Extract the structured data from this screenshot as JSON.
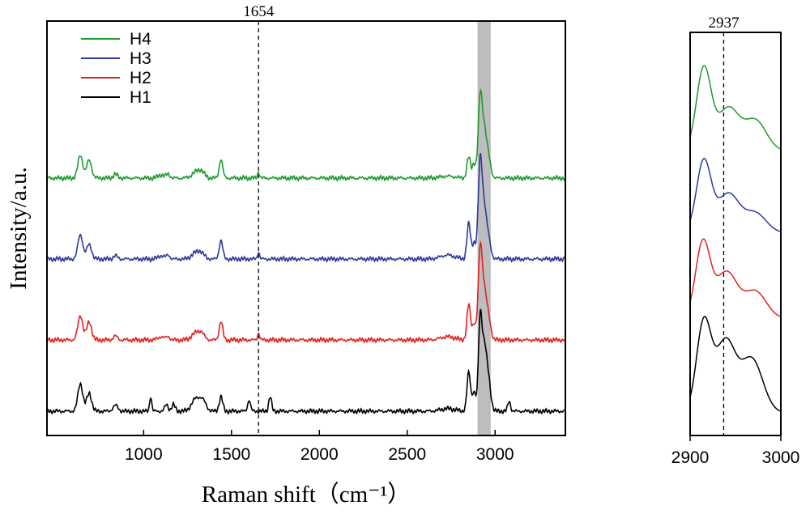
{
  "chart_data": [
    {
      "type": "line",
      "title": "",
      "xlabel": "Raman shift",
      "xlabel_unit": "（cm⁻¹）",
      "ylabel": "Intensity/a.u.",
      "xlim": [
        450,
        3400
      ],
      "ylim": [
        0,
        10
      ],
      "xticks": [
        1000,
        1500,
        2000,
        2500,
        3000
      ],
      "xtick_labels": [
        "1000",
        "1500",
        "2000",
        "2500",
        "3000"
      ],
      "yticks_shown": false,
      "reference_line": {
        "x": 1654,
        "label": "1654"
      },
      "highlight_band": {
        "from": 2900,
        "to": 2975,
        "color": "#bdbdbd"
      },
      "legend": {
        "position": "top-left",
        "entries": [
          "H4",
          "H3",
          "H2",
          "H1"
        ]
      },
      "series": [
        {
          "name": "H4",
          "color": "#1f9a2e",
          "baseline": 7.2,
          "scale": 1.0,
          "peaks": [
            [
              640,
              0.7,
              14
            ],
            [
              690,
              0.55,
              14
            ],
            [
              840,
              0.12,
              12
            ],
            [
              1100,
              0.1,
              18
            ],
            [
              1140,
              0.12,
              10
            ],
            [
              1300,
              0.18,
              25
            ],
            [
              1330,
              0.15,
              18
            ],
            [
              1440,
              0.58,
              10
            ],
            [
              1654,
              0.18,
              6
            ],
            [
              2730,
              0.06,
              40
            ],
            [
              2850,
              0.65,
              10
            ],
            [
              2880,
              0.45,
              10
            ],
            [
              2915,
              2.45,
              11
            ],
            [
              2937,
              1.3,
              12
            ],
            [
              2960,
              0.7,
              14
            ]
          ]
        },
        {
          "name": "H3",
          "color": "#2b3a9c",
          "baseline": 4.7,
          "scale": 1.0,
          "peaks": [
            [
              640,
              0.75,
              14
            ],
            [
              690,
              0.45,
              14
            ],
            [
              840,
              0.1,
              12
            ],
            [
              1100,
              0.1,
              18
            ],
            [
              1140,
              0.12,
              10
            ],
            [
              1300,
              0.2,
              25
            ],
            [
              1330,
              0.12,
              18
            ],
            [
              1440,
              0.58,
              10
            ],
            [
              1654,
              0.22,
              6
            ],
            [
              2730,
              0.12,
              40
            ],
            [
              2850,
              1.1,
              10
            ],
            [
              2880,
              0.5,
              10
            ],
            [
              2915,
              2.95,
              11
            ],
            [
              2937,
              1.35,
              12
            ],
            [
              2960,
              0.7,
              14
            ]
          ]
        },
        {
          "name": "H2",
          "color": "#e0231f",
          "baseline": 2.2,
          "scale": 1.0,
          "peaks": [
            [
              640,
              0.75,
              14
            ],
            [
              690,
              0.55,
              14
            ],
            [
              840,
              0.12,
              12
            ],
            [
              1100,
              0.1,
              18
            ],
            [
              1140,
              0.1,
              10
            ],
            [
              1300,
              0.22,
              25
            ],
            [
              1330,
              0.14,
              18
            ],
            [
              1440,
              0.58,
              10
            ],
            [
              1654,
              0.22,
              6
            ],
            [
              2730,
              0.1,
              40
            ],
            [
              2850,
              1.1,
              10
            ],
            [
              2880,
              0.5,
              10
            ],
            [
              2915,
              2.75,
              11
            ],
            [
              2937,
              1.3,
              12
            ],
            [
              2960,
              0.75,
              14
            ]
          ]
        },
        {
          "name": "H1",
          "color": "#000000",
          "baseline": 0.0,
          "scale": 1.0,
          "peaks": [
            [
              640,
              0.85,
              14
            ],
            [
              690,
              0.55,
              14
            ],
            [
              840,
              0.18,
              14
            ],
            [
              1040,
              0.45,
              6
            ],
            [
              1130,
              0.2,
              10
            ],
            [
              1170,
              0.2,
              10
            ],
            [
              1300,
              0.4,
              25
            ],
            [
              1340,
              0.25,
              18
            ],
            [
              1440,
              0.45,
              10
            ],
            [
              1600,
              0.35,
              8
            ],
            [
              1720,
              0.45,
              8
            ],
            [
              2730,
              0.08,
              40
            ],
            [
              2850,
              1.2,
              10
            ],
            [
              2880,
              0.6,
              10
            ],
            [
              2915,
              2.75,
              10
            ],
            [
              2937,
              1.75,
              12
            ],
            [
              2960,
              1.05,
              14
            ],
            [
              3080,
              0.3,
              8
            ]
          ]
        }
      ]
    },
    {
      "type": "line",
      "title": "",
      "xlabel": "",
      "ylabel": "",
      "xlim": [
        2900,
        3000
      ],
      "ylim": [
        0,
        10
      ],
      "xticks": [
        2900,
        3000
      ],
      "xtick_labels": [
        "2900",
        "3000"
      ],
      "reference_line": {
        "x": 2937,
        "label": "2937"
      },
      "series": [
        {
          "name": "H4",
          "color": "#1f9a2e",
          "baseline": 7.35,
          "peaks": [
            [
              2915,
              2.3,
              8
            ],
            [
              2942,
              1.2,
              12
            ],
            [
              2972,
              0.85,
              12
            ]
          ]
        },
        {
          "name": "H3",
          "color": "#2b3a9c",
          "baseline": 5.05,
          "peaks": [
            [
              2915,
              2.0,
              8
            ],
            [
              2942,
              1.1,
              12
            ],
            [
              2972,
              0.55,
              12
            ]
          ]
        },
        {
          "name": "H2",
          "color": "#e0231f",
          "baseline": 2.65,
          "peaks": [
            [
              2914,
              2.1,
              8
            ],
            [
              2940,
              1.3,
              12
            ],
            [
              2972,
              0.75,
              12
            ]
          ]
        },
        {
          "name": "H1",
          "color": "#000000",
          "baseline": 0.0,
          "peaks": [
            [
              2915,
              2.5,
              8
            ],
            [
              2939,
              2.0,
              11
            ],
            [
              2968,
              1.5,
              12
            ]
          ]
        }
      ]
    }
  ]
}
